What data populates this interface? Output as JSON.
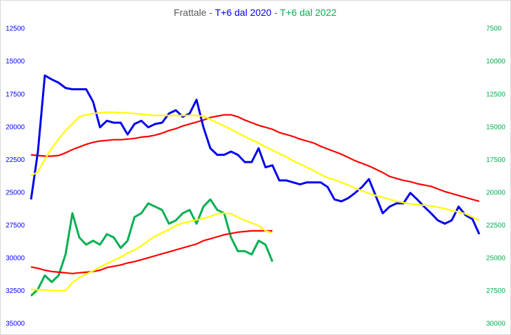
{
  "chart_data": {
    "type": "line",
    "title_parts": [
      {
        "text": "Frattale - ",
        "color": "#595959"
      },
      {
        "text": "T+6 dal 2020",
        "color": "#0000ff"
      },
      {
        "text": " - ",
        "color": "#595959"
      },
      {
        "text": "T+6 dal 2022",
        "color": "#00b050"
      }
    ],
    "ylim": [
      35000,
      12500
    ],
    "yticks": [
      12500,
      15000,
      17500,
      20000,
      22500,
      25000,
      27500,
      30000,
      32500,
      35000
    ],
    "ytick_color": "#0000ff",
    "y2lim": [
      30000,
      7500
    ],
    "y2ticks": [
      7500,
      10000,
      12500,
      15000,
      17500,
      20000,
      22500,
      25000,
      27500,
      30000
    ],
    "y2tick_color": "#00b050",
    "series": [
      {
        "color": "#ff0000",
        "axis": "y",
        "values": [
          22100,
          22150,
          22200,
          22200,
          22150,
          21950,
          21700,
          21500,
          21300,
          21150,
          21050,
          21000,
          20950,
          20950,
          20900,
          20850,
          20750,
          20700,
          20600,
          20450,
          20250,
          20100,
          19900,
          19750,
          19600,
          19450,
          19250,
          19150,
          19050,
          19050,
          19200,
          19450,
          19650,
          19850,
          20000,
          20150,
          20400,
          20550,
          20700,
          20900,
          21050,
          21200,
          21450,
          21650,
          21850,
          22050,
          22300,
          22550,
          22750,
          22950,
          23200,
          23450,
          23750,
          23900,
          24050,
          24150,
          24300,
          24400,
          24500,
          24700,
          24900,
          25050,
          25200,
          25350,
          25500,
          25650
        ]
      },
      {
        "color": "#0000ee",
        "axis": "y",
        "values": [
          25500,
          21850,
          16050,
          16350,
          16600,
          17000,
          17100,
          17100,
          17100,
          18050,
          20000,
          19500,
          19650,
          19650,
          20550,
          19750,
          19500,
          20000,
          19750,
          19650,
          18950,
          18700,
          19200,
          18950,
          17900,
          20000,
          21600,
          22100,
          22100,
          21850,
          22100,
          22650,
          22650,
          21600,
          23050,
          22900,
          24050,
          24050,
          24200,
          24350,
          24200,
          24200,
          24200,
          24550,
          25500,
          25650,
          25400,
          25000,
          24550,
          23950,
          25250,
          26550,
          26050,
          25800,
          25800,
          25000,
          25500,
          26050,
          26550,
          27100,
          27350,
          27100,
          26050,
          26700,
          27000,
          28150
        ]
      },
      {
        "color": "#ffff00",
        "axis": "y",
        "values": [
          23700,
          23400,
          22450,
          21600,
          20900,
          20250,
          19750,
          19200,
          19050,
          18950,
          18900,
          18850,
          18850,
          18900,
          18900,
          18950,
          19000,
          19050,
          19100,
          19100,
          19100,
          19100,
          19100,
          19100,
          19100,
          19150,
          19400,
          19650,
          19900,
          20150,
          20450,
          20700,
          20950,
          21200,
          21500,
          21750,
          22000,
          22250,
          22550,
          22800,
          23050,
          23300,
          23600,
          23850,
          24000,
          24200,
          24400,
          24650,
          24850,
          25050,
          25200,
          25350,
          25500,
          25650,
          25750,
          25850,
          25900,
          25950,
          26000,
          26100,
          26200,
          26350,
          26450,
          26600,
          26850,
          27100
        ]
      },
      {
        "color": "#00b050",
        "axis": "y2",
        "values": [
          27850,
          27350,
          26300,
          26800,
          26300,
          24700,
          21550,
          23400,
          23950,
          23650,
          23950,
          23150,
          23400,
          24200,
          23650,
          21850,
          21550,
          20800,
          21050,
          21300,
          22350,
          22100,
          21550,
          21300,
          22350,
          21050,
          20500,
          21300,
          21550,
          23400,
          24450,
          24450,
          24700,
          23650,
          23950,
          25250
        ]
      },
      {
        "color": "#ff0000",
        "axis": "y2",
        "values": [
          25650,
          25750,
          25900,
          26000,
          26050,
          26100,
          26150,
          26100,
          26050,
          26000,
          25900,
          25700,
          25600,
          25500,
          25350,
          25250,
          25100,
          24950,
          24800,
          24650,
          24500,
          24350,
          24200,
          24050,
          23900,
          23650,
          23500,
          23350,
          23200,
          23100,
          23000,
          22950,
          22900,
          22900,
          22900,
          22900
        ]
      },
      {
        "color": "#ffff00",
        "axis": "y2",
        "values": [
          27350,
          27400,
          27400,
          27450,
          27450,
          27450,
          26850,
          26450,
          26200,
          25950,
          25650,
          25400,
          25150,
          24900,
          24600,
          24350,
          24050,
          23650,
          23300,
          23050,
          22800,
          22500,
          22300,
          22200,
          22050,
          21950,
          21800,
          21600,
          21550,
          21600,
          21850,
          22100,
          22300,
          22500,
          22900,
          23050
        ]
      }
    ]
  }
}
